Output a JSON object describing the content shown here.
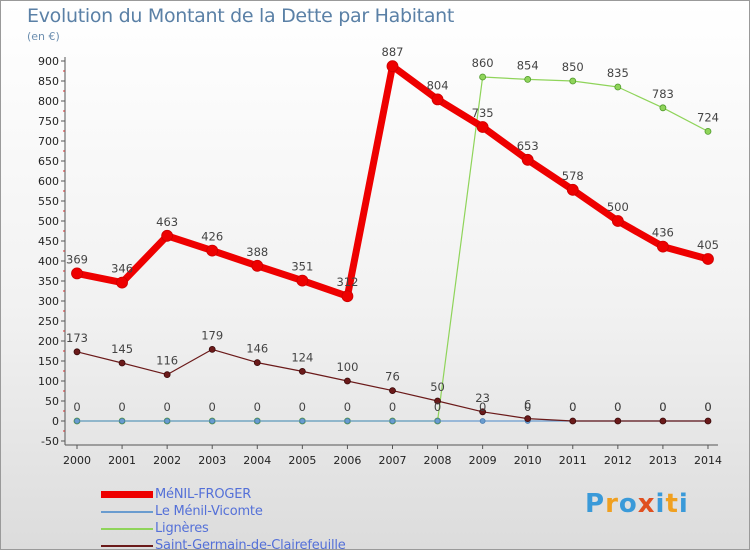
{
  "title": "Evolution du Montant de la Dette par Habitant",
  "unit": "(en €)",
  "logo": "Proxiti",
  "logo_colors": [
    "#3a9ad9",
    "#f0a020",
    "#3a9ad9",
    "#e05020",
    "#3a9ad9",
    "#f0a020",
    "#3a9ad9"
  ],
  "chart_data": {
    "type": "line",
    "title": "Evolution du Montant de la Dette par Habitant",
    "ylabel": "(en €)",
    "xlabel": "",
    "x": [
      "2000",
      "2001",
      "2002",
      "2003",
      "2004",
      "2005",
      "2006",
      "2007",
      "2008",
      "2009",
      "2010",
      "2011",
      "2012",
      "2013",
      "2014"
    ],
    "ylim": [
      -50,
      900
    ],
    "yticks": [
      -50,
      0,
      50,
      100,
      150,
      200,
      250,
      300,
      350,
      400,
      450,
      500,
      550,
      600,
      650,
      700,
      750,
      800,
      850,
      900
    ],
    "grid": false,
    "legend_position": "bottom-left",
    "series": [
      {
        "name": "MéNIL-FROGER",
        "color": "#ee0000",
        "values": [
          369,
          346,
          463,
          426,
          388,
          351,
          312,
          887,
          804,
          735,
          653,
          578,
          500,
          436,
          405
        ],
        "labels": [
          "369",
          "346",
          "463",
          "426",
          "388",
          "351",
          "312",
          "887",
          "804",
          "735",
          "653",
          "578",
          "500",
          "436",
          "405"
        ]
      },
      {
        "name": "Le Ménil-Vicomte",
        "color": "#6a9ccf",
        "values": [
          0,
          0,
          0,
          0,
          0,
          0,
          0,
          0,
          0,
          0,
          0,
          0,
          0,
          0,
          0
        ],
        "labels": [
          "0",
          "0",
          "0",
          "0",
          "0",
          "0",
          "0",
          "0",
          "0",
          "0",
          "0",
          "0",
          "0",
          "0",
          "0"
        ]
      },
      {
        "name": "Lignères",
        "color": "#8fd45a",
        "values": [
          0,
          0,
          0,
          0,
          0,
          0,
          0,
          0,
          0,
          860,
          854,
          850,
          835,
          783,
          724
        ],
        "labels": [
          "",
          "",
          "",
          "",
          "",
          "",
          "",
          "",
          "",
          "860",
          "854",
          "850",
          "835",
          "783",
          "724"
        ]
      },
      {
        "name": "Saint-Germain-de-Clairefeuille",
        "color": "#6b1a1a",
        "values": [
          173,
          145,
          116,
          179,
          146,
          124,
          100,
          76,
          50,
          23,
          6,
          0,
          0,
          0,
          0
        ],
        "labels": [
          "173",
          "145",
          "116",
          "179",
          "146",
          "124",
          "100",
          "76",
          "50",
          "23",
          "6",
          "0",
          "0",
          "0",
          "0"
        ]
      }
    ]
  }
}
